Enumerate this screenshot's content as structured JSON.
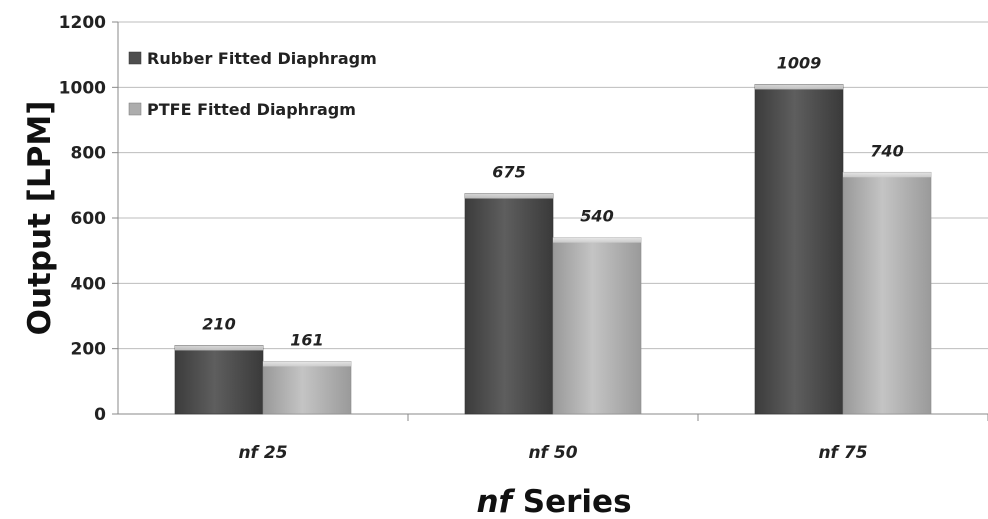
{
  "chart_data": {
    "type": "bar",
    "categories": [
      "nf 25",
      "nf 50",
      "nf 75"
    ],
    "series": [
      {
        "name": "Rubber Fitted Diaphragm",
        "values": [
          210,
          675,
          1009
        ],
        "color": "#4e4e4e"
      },
      {
        "name": "PTFE Fitted Diaphragm",
        "values": [
          161,
          540,
          740
        ],
        "color": "#adadad"
      }
    ],
    "data_labels": [
      [
        "210",
        "675",
        "1009"
      ],
      [
        "161",
        "540",
        "740"
      ]
    ],
    "ylim": [
      0,
      1200
    ],
    "yticks": [
      0,
      200,
      400,
      600,
      800,
      1000,
      1200
    ],
    "ylabel": "Output [LPM]",
    "xlabel_italic": "nf",
    "xlabel_rest": " Series",
    "grid": true,
    "legend_position": "top-left"
  }
}
